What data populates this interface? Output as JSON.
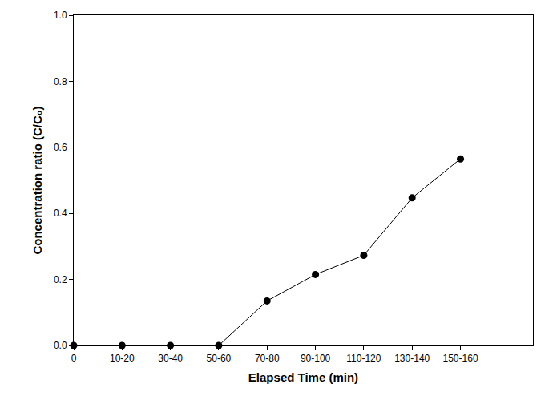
{
  "chart_data": {
    "type": "line",
    "x_label": "Elapsed Time (min)",
    "y_label": "Concentration ratio (C/C₀)",
    "categories": [
      "0",
      "10-20",
      "30-40",
      "50-60",
      "70-80",
      "90-100",
      "110-120",
      "130-140",
      "150-160"
    ],
    "values": [
      0,
      0,
      0,
      0,
      0.135,
      0.215,
      0.273,
      0.447,
      0.565
    ],
    "color": "#000000",
    "marker": "circle",
    "line_style": "solid",
    "ylim": [
      0,
      1.0
    ],
    "yticks": [
      {
        "value": 0,
        "label": "0.0"
      },
      0.2,
      0.4,
      0.6,
      0.8,
      {
        "value": 1.0,
        "label": "1.0"
      }
    ],
    "grid": false
  }
}
